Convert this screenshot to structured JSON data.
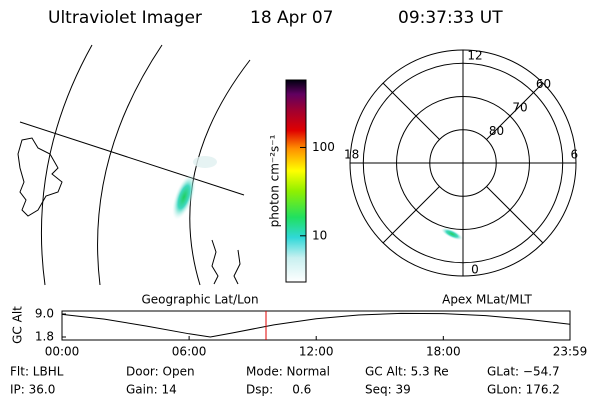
{
  "header": {
    "title": "Ultraviolet Imager",
    "date": "18 Apr 07",
    "time": "09:37:33 UT"
  },
  "colorbar": {
    "label": "photon cm⁻²s⁻¹",
    "log": true,
    "range": [
      3,
      580
    ],
    "ticks": [
      10,
      100
    ]
  },
  "polar": {
    "rlim": [
      90,
      56
    ],
    "lat_rings": [
      80,
      70,
      60
    ],
    "mlt_labels": [
      12,
      6,
      0,
      18
    ]
  },
  "strip": {
    "left_title": "Geographic Lat/Lon",
    "right_title": "Apex MLat/MLT",
    "ylabel": "GC Alt",
    "ylim": [
      1.8,
      9.0
    ],
    "yticks": [
      {
        "value": 9.0,
        "label": "9.0"
      },
      {
        "value": 1.8,
        "label": "1.8"
      }
    ],
    "xlim": [
      0,
      23.98
    ],
    "xticks": [
      {
        "value": 0,
        "label": "00:00"
      },
      {
        "value": 6,
        "label": "06:00"
      },
      {
        "value": 12,
        "label": "12:00"
      },
      {
        "value": 18,
        "label": "18:00"
      },
      {
        "value": 23.98,
        "label": "23:59"
      }
    ],
    "x": [
      0,
      2,
      4,
      6,
      7,
      8,
      10,
      12,
      14,
      16,
      18,
      20,
      22,
      23.98
    ],
    "values": [
      8.9,
      7.4,
      5.2,
      2.8,
      1.8,
      3.0,
      5.6,
      7.5,
      8.7,
      9.2,
      9.1,
      8.5,
      7.3,
      5.8
    ],
    "marker_x": 9.63,
    "marker_color": "#e00000"
  },
  "footer": {
    "rows": [
      [
        "Flt: LBHL",
        "Door: Open",
        "Mode: Normal",
        "GC Alt: 5.3 Re",
        "GLat: −54.7"
      ],
      [
        "IP: 36.0",
        "Gain: 14",
        "Dsp:     0.6",
        "Seq: 39",
        "GLon: 176.2"
      ]
    ]
  }
}
